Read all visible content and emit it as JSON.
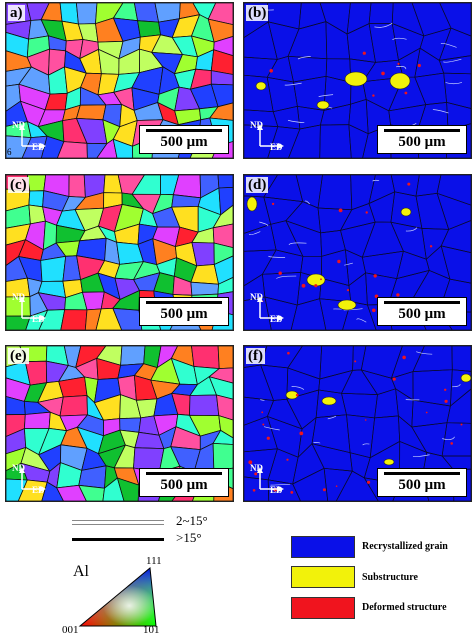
{
  "panels": [
    {
      "label": "a)",
      "type": "ipf",
      "scale": "500 μm",
      "nd": "ND",
      "ed": "ED",
      "extra": "6"
    },
    {
      "label": "(b)",
      "type": "grain",
      "scale": "500 μm",
      "nd": "ND",
      "ed": "ED"
    },
    {
      "label": "(c)",
      "type": "ipf",
      "scale": "500 μm",
      "nd": "ND",
      "ed": "ED"
    },
    {
      "label": "(d)",
      "type": "grain",
      "scale": "500 μm",
      "nd": "ND",
      "ed": "ED"
    },
    {
      "label": "(e)",
      "type": "ipf",
      "scale": "500 μm",
      "nd": "ND",
      "ed": "ED"
    },
    {
      "label": "(f)",
      "type": "grain",
      "scale": "500 μm",
      "nd": "ND",
      "ed": "ED"
    }
  ],
  "boundary_legend": [
    {
      "label": "2~15°",
      "style": "thin-gray"
    },
    {
      "label": ">15°",
      "style": "thick-black"
    }
  ],
  "ipf_legend": {
    "material": "Al",
    "corners": {
      "top": "111",
      "left": "001",
      "right": "101"
    }
  },
  "grain_legend": [
    {
      "label": "Recrystallized grain",
      "color": "#0a10e8"
    },
    {
      "label": "Substructure",
      "color": "#f2f20a"
    },
    {
      "label": "Deformed structure",
      "color": "#f0141e"
    }
  ],
  "colors": {
    "recrystallized": "#0a10e8",
    "substructure": "#f2f20a",
    "deformed": "#f0141e"
  }
}
